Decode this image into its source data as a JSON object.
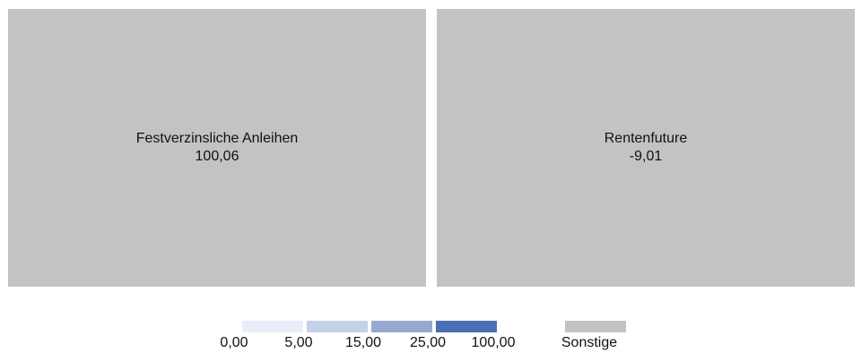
{
  "chart_data": {
    "type": "treemap",
    "tiles": [
      {
        "name": "Festverzinsliche Anleihen",
        "value_label": "100,06",
        "value": 100.06,
        "category": "Sonstige"
      },
      {
        "name": "Rentenfuture",
        "value_label": "-9,01",
        "value": -9.01,
        "category": "Sonstige"
      }
    ],
    "legend": {
      "scale_ticks": [
        "0,00",
        "5,00",
        "15,00",
        "25,00",
        "100,00"
      ],
      "scale_colors": [
        "#e9eff9",
        "#c5d1e6",
        "#97a9d0",
        "#4a6fb2"
      ],
      "other_label": "Sonstige",
      "other_color": "#c3c3c3"
    },
    "tile_color": "#c3c3c3"
  }
}
